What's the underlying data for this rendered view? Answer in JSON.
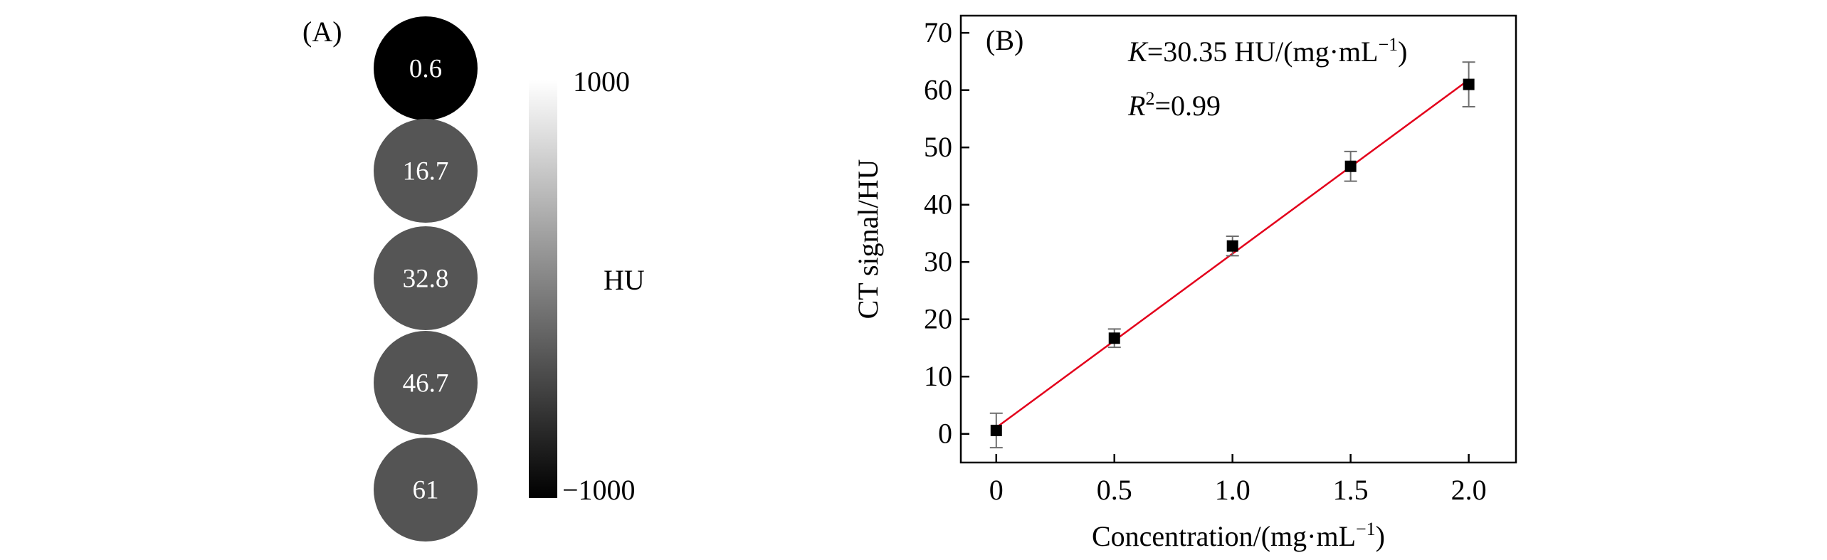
{
  "panel_a": {
    "label": "(A)",
    "phantoms": [
      {
        "value_text": "0.6",
        "fill": "#000000"
      },
      {
        "value_text": "16.7",
        "fill": "#555555"
      },
      {
        "value_text": "32.8",
        "fill": "#555555"
      },
      {
        "value_text": "46.7",
        "fill": "#545454"
      },
      {
        "value_text": "61",
        "fill": "#545454"
      }
    ],
    "colorbar": {
      "max_label": "1000",
      "min_label": "−1000",
      "unit_label": "HU",
      "max": 1000,
      "min": -1000,
      "colors": [
        "#000000",
        "#ffffff"
      ]
    }
  },
  "panel_b": {
    "label": "(B)",
    "annotation_k_symbol": "K",
    "annotation_k_rest": "=30.35 HU/(mg·mL",
    "annotation_k_sup": "−1",
    "annotation_k_close": ")",
    "annotation_r_symbol": "R",
    "annotation_r_sup": "2",
    "annotation_r_rest": "=0.99"
  },
  "chart_data": {
    "type": "scatter",
    "xlabel_main": "Concentration/(mg·mL",
    "xlabel_sup": "−1",
    "xlabel_close": ")",
    "ylabel": "CT signal/HU",
    "xlim": [
      -0.15,
      2.2
    ],
    "ylim": [
      -5,
      73
    ],
    "xticks": [
      0,
      0.5,
      1.0,
      1.5,
      2.0
    ],
    "xtick_labels": [
      "0",
      "0.5",
      "1.0",
      "1.5",
      "2.0"
    ],
    "yticks": [
      0,
      10,
      20,
      30,
      40,
      50,
      60,
      70
    ],
    "ytick_labels": [
      "0",
      "10",
      "20",
      "30",
      "40",
      "50",
      "60",
      "70"
    ],
    "grid": false,
    "series": [
      {
        "x": [
          0,
          0.5,
          1.0,
          1.5,
          2.0
        ],
        "y": [
          0.6,
          16.7,
          32.8,
          46.7,
          61
        ],
        "error": [
          3.0,
          1.6,
          1.7,
          2.6,
          3.9
        ],
        "marker": "square",
        "color": "#000000"
      }
    ],
    "fit_line": {
      "slope": 30.35,
      "intercept": 1.1,
      "x_range": [
        0,
        2.0
      ],
      "color": "#e3001b"
    },
    "error_bar_color": "#6e6e6e"
  }
}
